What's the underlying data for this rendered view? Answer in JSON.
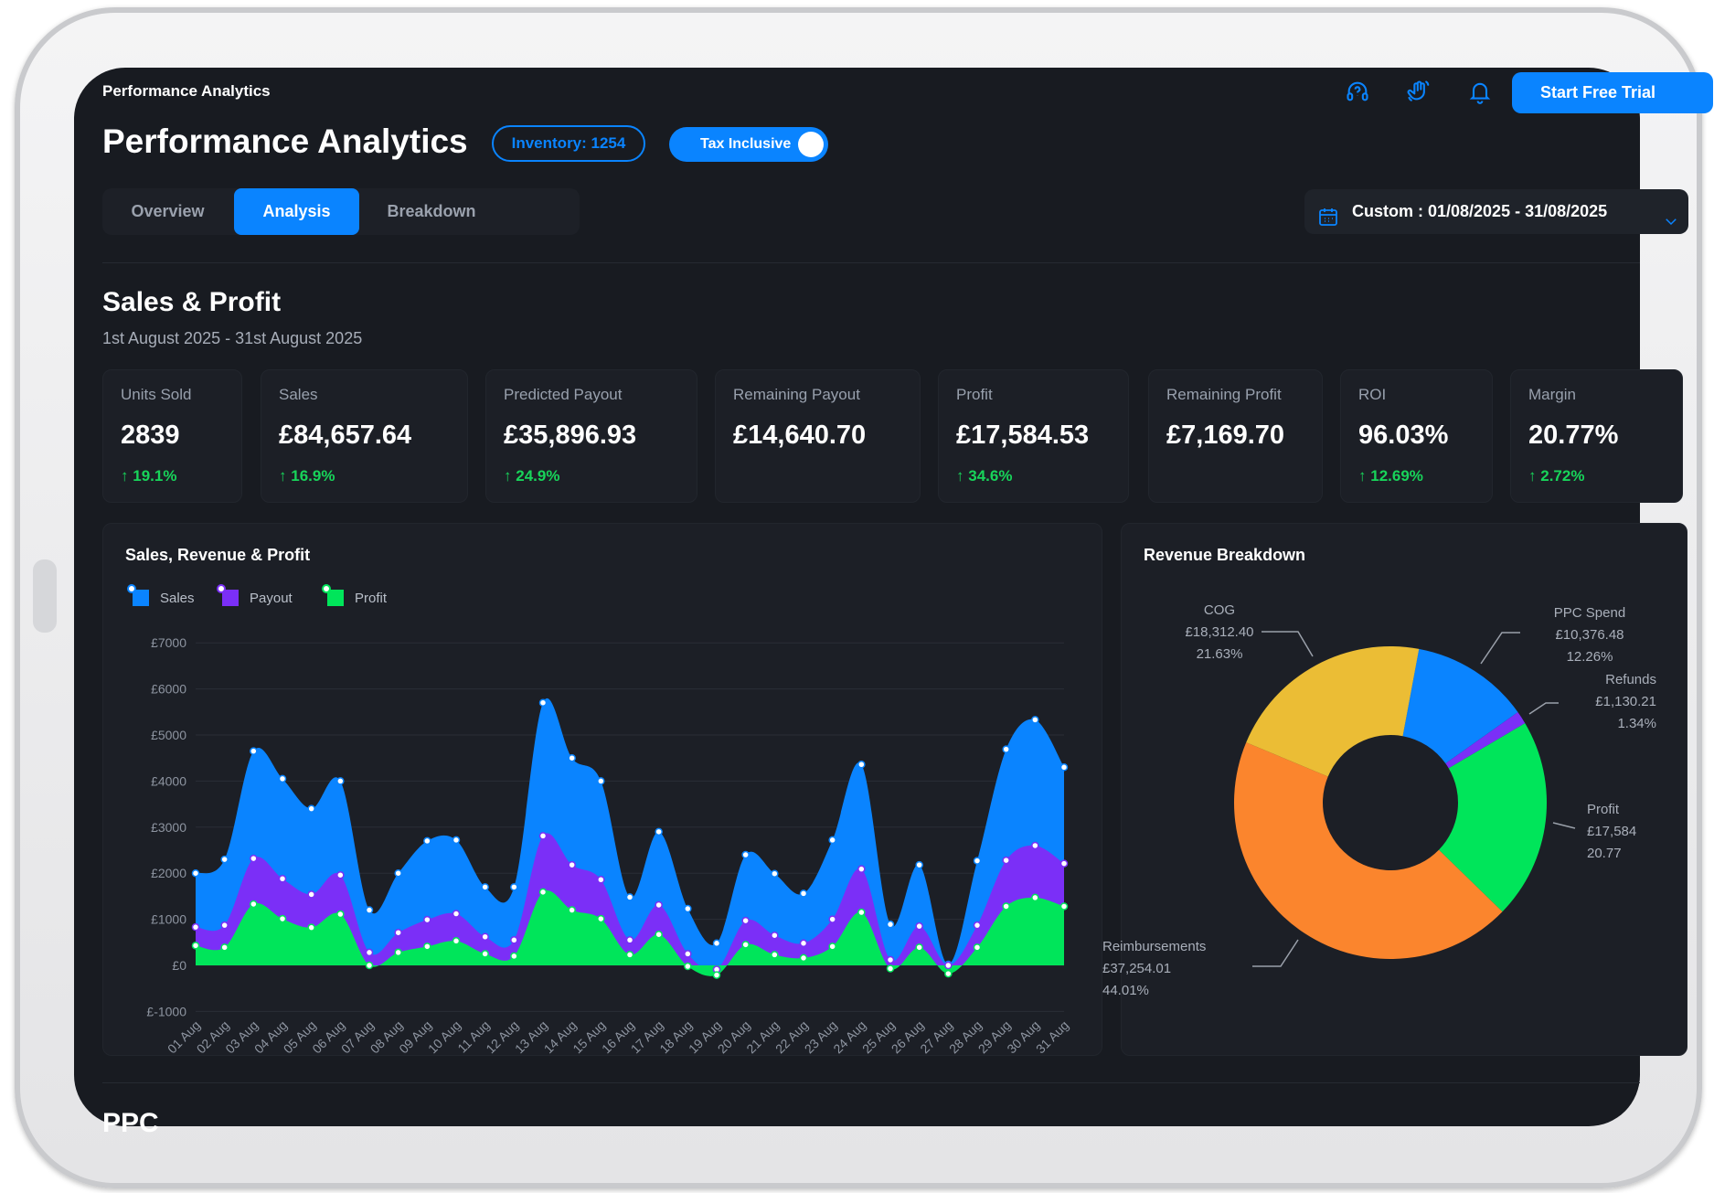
{
  "app": {
    "title": "Performance Analytics",
    "start_button": "Start Free Trial"
  },
  "header": {
    "title": "Performance Analytics",
    "inventory": "Inventory: 1254",
    "tax_toggle": {
      "label": "Tax Inclusive",
      "on": true
    }
  },
  "icons": [
    "headset-help-icon",
    "wave-hand-icon",
    "bell-icon",
    "calendar-icon",
    "chevron-down-icon",
    "arrow-up-icon"
  ],
  "tabs": [
    {
      "label": "Overview"
    },
    {
      "label": "Analysis",
      "active": true
    },
    {
      "label": "Breakdown"
    }
  ],
  "date_range": "Custom : 01/08/2025 - 31/08/2025",
  "section": {
    "title": "Sales & Profit",
    "subtitle": "1st August 2025 - 31st August 2025"
  },
  "kpis": [
    {
      "label": "Units Sold",
      "value": "2839",
      "change": "19.1%"
    },
    {
      "label": "Sales",
      "value": "£84,657.64",
      "change": "16.9%"
    },
    {
      "label": "Predicted Payout",
      "value": "£35,896.93",
      "change": "24.9%"
    },
    {
      "label": "Remaining Payout",
      "value": "£14,640.70",
      "change": ""
    },
    {
      "label": "Profit",
      "value": "£17,584.53",
      "change": "34.6%"
    },
    {
      "label": "Remaining Profit",
      "value": "£7,169.70",
      "change": ""
    },
    {
      "label": "ROI",
      "value": "96.03%",
      "change": "12.69%"
    },
    {
      "label": "Margin",
      "value": "20.77%",
      "change": "2.72%"
    }
  ],
  "colors": {
    "accent": "#0a84ff",
    "positive": "#18d45a"
  },
  "next_section": {
    "title": "PPC"
  },
  "chart_data": [
    {
      "type": "area",
      "title": "Sales, Revenue & Profit",
      "ylim": [
        -1000,
        7000
      ],
      "y_ticks": [
        "£7000",
        "£6000",
        "£5000",
        "£4000",
        "£3000",
        "£2000",
        "£1000",
        "£0",
        "£-1000"
      ],
      "grid": true,
      "legend": "top-left",
      "categories": [
        "01 Aug",
        "02 Aug",
        "03 Aug",
        "04 Aug",
        "05 Aug",
        "06 Aug",
        "07 Aug",
        "08 Aug",
        "09 Aug",
        "10 Aug",
        "11 Aug",
        "12 Aug",
        "13 Aug",
        "14 Aug",
        "15 Aug",
        "16 Aug",
        "17 Aug",
        "18 Aug",
        "19 Aug",
        "20 Aug",
        "21 Aug",
        "22 Aug",
        "23 Aug",
        "24 Aug",
        "25 Aug",
        "26 Aug",
        "27 Aug",
        "28 Aug",
        "29 Aug",
        "30 Aug",
        "31 Aug"
      ],
      "series": [
        {
          "name": "Sales",
          "color": "#0a84ff",
          "values": [
            2000,
            2300,
            4650,
            4050,
            3400,
            4000,
            1200,
            2000,
            2700,
            2720,
            1700,
            1700,
            5700,
            4500,
            4000,
            1480,
            2900,
            1230,
            480,
            2400,
            1990,
            1560,
            2720,
            4360,
            890,
            2180,
            20,
            2270,
            4690,
            5330,
            4300
          ]
        },
        {
          "name": "Payout",
          "color": "#7b2ff7",
          "values": [
            830,
            870,
            2320,
            1880,
            1540,
            1960,
            280,
            710,
            990,
            1120,
            620,
            550,
            2810,
            2180,
            1860,
            550,
            1310,
            250,
            -90,
            970,
            650,
            480,
            1000,
            2090,
            120,
            850,
            0,
            870,
            2280,
            2600,
            2210
          ]
        },
        {
          "name": "Profit",
          "color": "#00e55a",
          "values": [
            430,
            390,
            1330,
            1010,
            820,
            1110,
            0,
            280,
            410,
            530,
            250,
            200,
            1590,
            1200,
            1010,
            230,
            670,
            -20,
            -210,
            450,
            230,
            160,
            410,
            1150,
            -70,
            390,
            -180,
            390,
            1280,
            1470,
            1280
          ]
        }
      ]
    },
    {
      "type": "pie",
      "title": "Revenue Breakdown",
      "slices": [
        {
          "label": "PPC Spend",
          "value": "£10,376.48",
          "percent": 12.26,
          "percent_label": "12.26%",
          "color": "#0a84ff"
        },
        {
          "label": "Refunds",
          "value": "£1,130.21",
          "percent": 1.34,
          "percent_label": "1.34%",
          "color": "#7b2ff7"
        },
        {
          "label": "Profit",
          "value": "£17,584",
          "percent": 20.77,
          "percent_label": "20.77",
          "color": "#00e55a"
        },
        {
          "label": "Reimbursements",
          "value": "£37,254.01",
          "percent": 44.01,
          "percent_label": "44.01%",
          "color": "#fb852d"
        },
        {
          "label": "COG",
          "value": "£18,312.40",
          "percent": 21.63,
          "percent_label": "21.63%",
          "color": "#ebbd35"
        }
      ]
    }
  ]
}
